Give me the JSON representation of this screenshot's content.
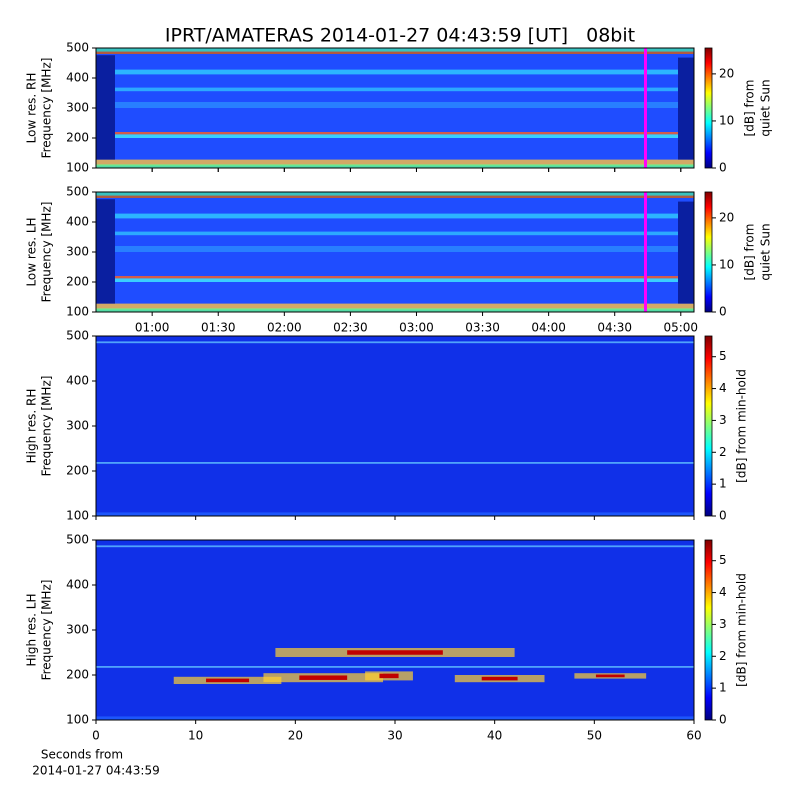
{
  "title": "IPRT/AMATERAS 2014-01-27 04:43:59 [UT]   08bit",
  "chart_data": [
    {
      "type": "spectrogram",
      "ylabel": [
        "Low res. RH",
        "Frequency [MHz]"
      ],
      "ylim": [
        100,
        500
      ],
      "yticks": [
        100,
        200,
        300,
        400,
        500
      ],
      "xlim": [
        34.5,
        306
      ],
      "xticks": [
        60,
        90,
        120,
        150,
        180,
        210,
        240,
        270,
        300
      ],
      "cursor": 283.98,
      "cursor_color": "#ff00ff",
      "clim": [
        0,
        25.5
      ],
      "cticks": [
        0,
        10,
        20
      ],
      "clabel": [
        "[dB] from",
        "quiet Sun"
      ],
      "colormap": "jet"
    },
    {
      "type": "spectrogram",
      "ylabel": [
        "Low res. LH",
        "Frequency [MHz]"
      ],
      "ylim": [
        100,
        500
      ],
      "yticks": [
        100,
        200,
        300,
        400,
        500
      ],
      "xlim": [
        34.5,
        306
      ],
      "xticks": [
        {
          "value": 60,
          "label": "01:00"
        },
        {
          "value": 90,
          "label": "01:30"
        },
        {
          "value": 120,
          "label": "02:00"
        },
        {
          "value": 150,
          "label": "02:30"
        },
        {
          "value": 180,
          "label": "03:00"
        },
        {
          "value": 210,
          "label": "03:30"
        },
        {
          "value": 240,
          "label": "04:00"
        },
        {
          "value": 270,
          "label": "04:30"
        },
        {
          "value": 300,
          "label": "05:00"
        }
      ],
      "cursor": 283.98,
      "cursor_color": "#ff00ff",
      "clim": [
        0,
        25.5
      ],
      "cticks": [
        0,
        10,
        20
      ],
      "clabel": [
        "[dB] from",
        "quiet Sun"
      ],
      "colormap": "jet"
    },
    {
      "type": "spectrogram",
      "ylabel": [
        "High res. RH",
        "Frequency [MHz]"
      ],
      "ylim": [
        100,
        500
      ],
      "yticks": [
        100,
        200,
        300,
        400,
        500
      ],
      "xlim": [
        0,
        60
      ],
      "xticks": [
        0,
        10,
        20,
        30,
        40,
        50,
        60
      ],
      "clim": [
        0,
        5.65
      ],
      "cticks": [
        0,
        1,
        2,
        3,
        4,
        5
      ],
      "clabel": [
        "[dB] from min-hold"
      ],
      "colormap": "jet"
    },
    {
      "type": "spectrogram",
      "ylabel": [
        "High res. LH",
        "Frequency [MHz]"
      ],
      "ylim": [
        100,
        500
      ],
      "yticks": [
        100,
        200,
        300,
        400,
        500
      ],
      "xlim": [
        0,
        60
      ],
      "xticks": [
        0,
        10,
        20,
        30,
        40,
        50,
        60
      ],
      "xtick_labels": true,
      "xlabel": [
        "Seconds from",
        "2014-01-27 04:43:59"
      ],
      "clim": [
        0,
        5.65
      ],
      "cticks": [
        0,
        1,
        2,
        3,
        4,
        5
      ],
      "clabel": [
        "[dB] from min-hold"
      ],
      "colormap": "jet"
    }
  ]
}
